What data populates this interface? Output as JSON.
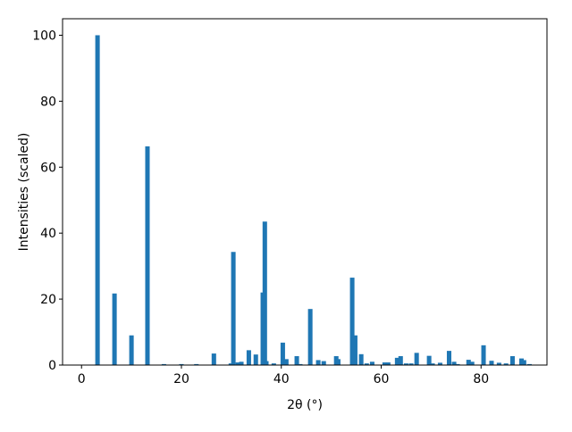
{
  "chart_data": {
    "type": "bar",
    "x_label": "2θ (°)",
    "y_label": "Intensities (scaled)",
    "color": "#1f77b4",
    "x": [
      3.2,
      6.6,
      10.0,
      13.2,
      16.5,
      20.0,
      23.0,
      26.5,
      29.9,
      30.4,
      31.3,
      32.0,
      33.5,
      34.9,
      36.3,
      36.7,
      37.0,
      38.5,
      40.3,
      41.0,
      43.1,
      43.8,
      45.8,
      47.4,
      48.5,
      51.0,
      51.4,
      54.2,
      54.8,
      56.0,
      57.1,
      58.2,
      60.7,
      61.4,
      63.2,
      63.9,
      65.0,
      66.0,
      67.1,
      69.6,
      70.3,
      71.8,
      73.6,
      74.6,
      75.3,
      77.5,
      78.2,
      80.5,
      82.1,
      83.6,
      85.0,
      86.3,
      88.1,
      88.6,
      89.7
    ],
    "values": [
      100,
      21.7,
      9,
      66.3,
      0.3,
      0.3,
      0.3,
      3.5,
      0.5,
      34.3,
      0.8,
      1,
      4.5,
      3.2,
      22,
      43.5,
      1.2,
      0.5,
      6.8,
      1.8,
      2.7,
      0.3,
      17,
      1.5,
      1.2,
      2.7,
      1.8,
      26.5,
      9,
      3.3,
      0.5,
      1,
      0.8,
      0.8,
      2.2,
      2.7,
      0.5,
      0.5,
      3.7,
      2.8,
      0.5,
      0.7,
      4.3,
      1,
      0.3,
      1.6,
      1,
      6,
      1.3,
      0.7,
      0.5,
      2.7,
      2,
      1.5,
      0.3
    ],
    "xlim": [
      -3.8,
      93.2
    ],
    "ylim": [
      0,
      105
    ],
    "xticks": [
      0,
      20,
      40,
      60,
      80
    ],
    "yticks": [
      0,
      20,
      40,
      60,
      80,
      100
    ]
  }
}
